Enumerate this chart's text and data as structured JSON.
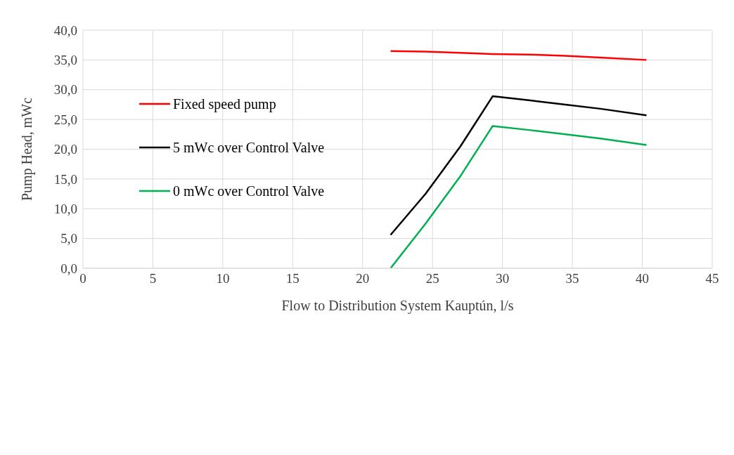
{
  "chart_data": {
    "type": "line",
    "xlabel": "Flow to Distribution  System Kauptún, l/s",
    "ylabel": "Pump Head, mWc",
    "xlim": [
      0,
      45
    ],
    "xticks": [
      0,
      5,
      10,
      15,
      20,
      25,
      30,
      35,
      40,
      45
    ],
    "ylim": [
      0,
      40
    ],
    "yticks": [
      {
        "value": 0,
        "label": "0,0"
      },
      {
        "value": 5,
        "label": "5,0"
      },
      {
        "value": 10,
        "label": "10,0"
      },
      {
        "value": 15,
        "label": "15,0"
      },
      {
        "value": 20,
        "label": "20,0"
      },
      {
        "value": 25,
        "label": "25,0"
      },
      {
        "value": 30,
        "label": "30,0"
      },
      {
        "value": 35,
        "label": "35,0"
      },
      {
        "value": 40,
        "label": "40,0"
      }
    ],
    "grid": true,
    "legend": "left",
    "marker": "none",
    "line_style": "solid",
    "series": [
      {
        "name": "Fixed speed pump",
        "color": "#ff0000",
        "x": [
          22,
          24.5,
          27,
          29.3,
          32,
          34.5,
          37,
          40.3
        ],
        "values": [
          36.5,
          36.4,
          36.2,
          36.0,
          35.9,
          35.7,
          35.4,
          35.0
        ]
      },
      {
        "name": "5 mWc over Control Valve",
        "color": "#000000",
        "x": [
          22,
          24.5,
          27,
          29.3,
          32,
          34.5,
          37,
          40.3
        ],
        "values": [
          5.6,
          12.5,
          20.5,
          28.9,
          28.2,
          27.5,
          26.8,
          25.7
        ]
      },
      {
        "name": "0 mWc over Control Valve",
        "color": "#00b050",
        "x": [
          22,
          24.5,
          27,
          29.3,
          32,
          34.5,
          37,
          40.3
        ],
        "values": [
          0,
          7.5,
          15.5,
          23.9,
          23.2,
          22.5,
          21.8,
          20.7
        ]
      }
    ]
  }
}
